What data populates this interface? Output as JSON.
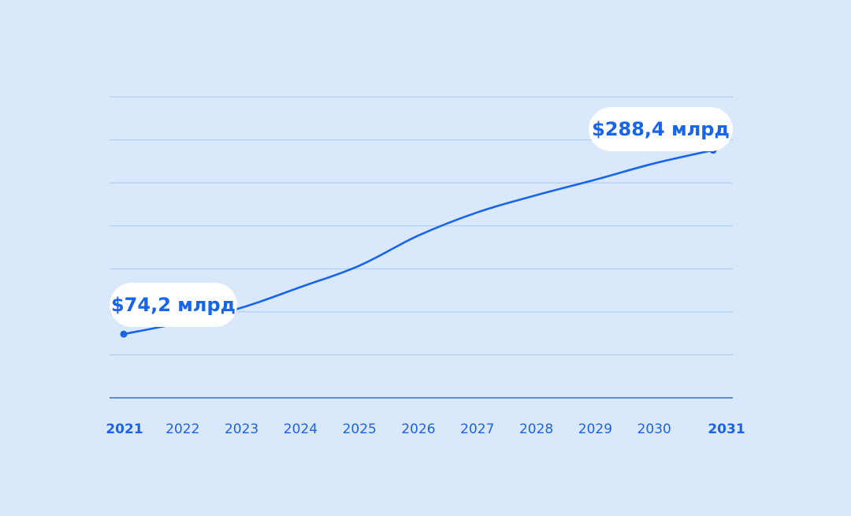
{
  "colors": {
    "background": "#dae8fc",
    "line": "#1665ea",
    "grid": "#a7c8f2",
    "tick_text": "#1c63e6",
    "bubble": "#ffffff"
  },
  "chart_data": {
    "type": "line",
    "title": "",
    "xlabel": "",
    "ylabel": "",
    "grid": true,
    "legend": "none",
    "ylim": [
      0,
      375
    ],
    "x": [
      "2021",
      "2022",
      "2023",
      "2024",
      "2025",
      "2026",
      "2027",
      "2028",
      "2029",
      "2030",
      "2031"
    ],
    "bold_ticks": [
      "2021",
      "2031"
    ],
    "series": [
      {
        "values": [
          74.2,
          88,
          105,
          129,
          154,
          189,
          216,
          236,
          254,
          273,
          288.4
        ]
      }
    ],
    "annotations": [
      {
        "x": "2021",
        "value": 74.2,
        "text": "$74,2 млрд"
      },
      {
        "x": "2031",
        "value": 288.4,
        "text": "$288,4 млрд"
      }
    ]
  }
}
